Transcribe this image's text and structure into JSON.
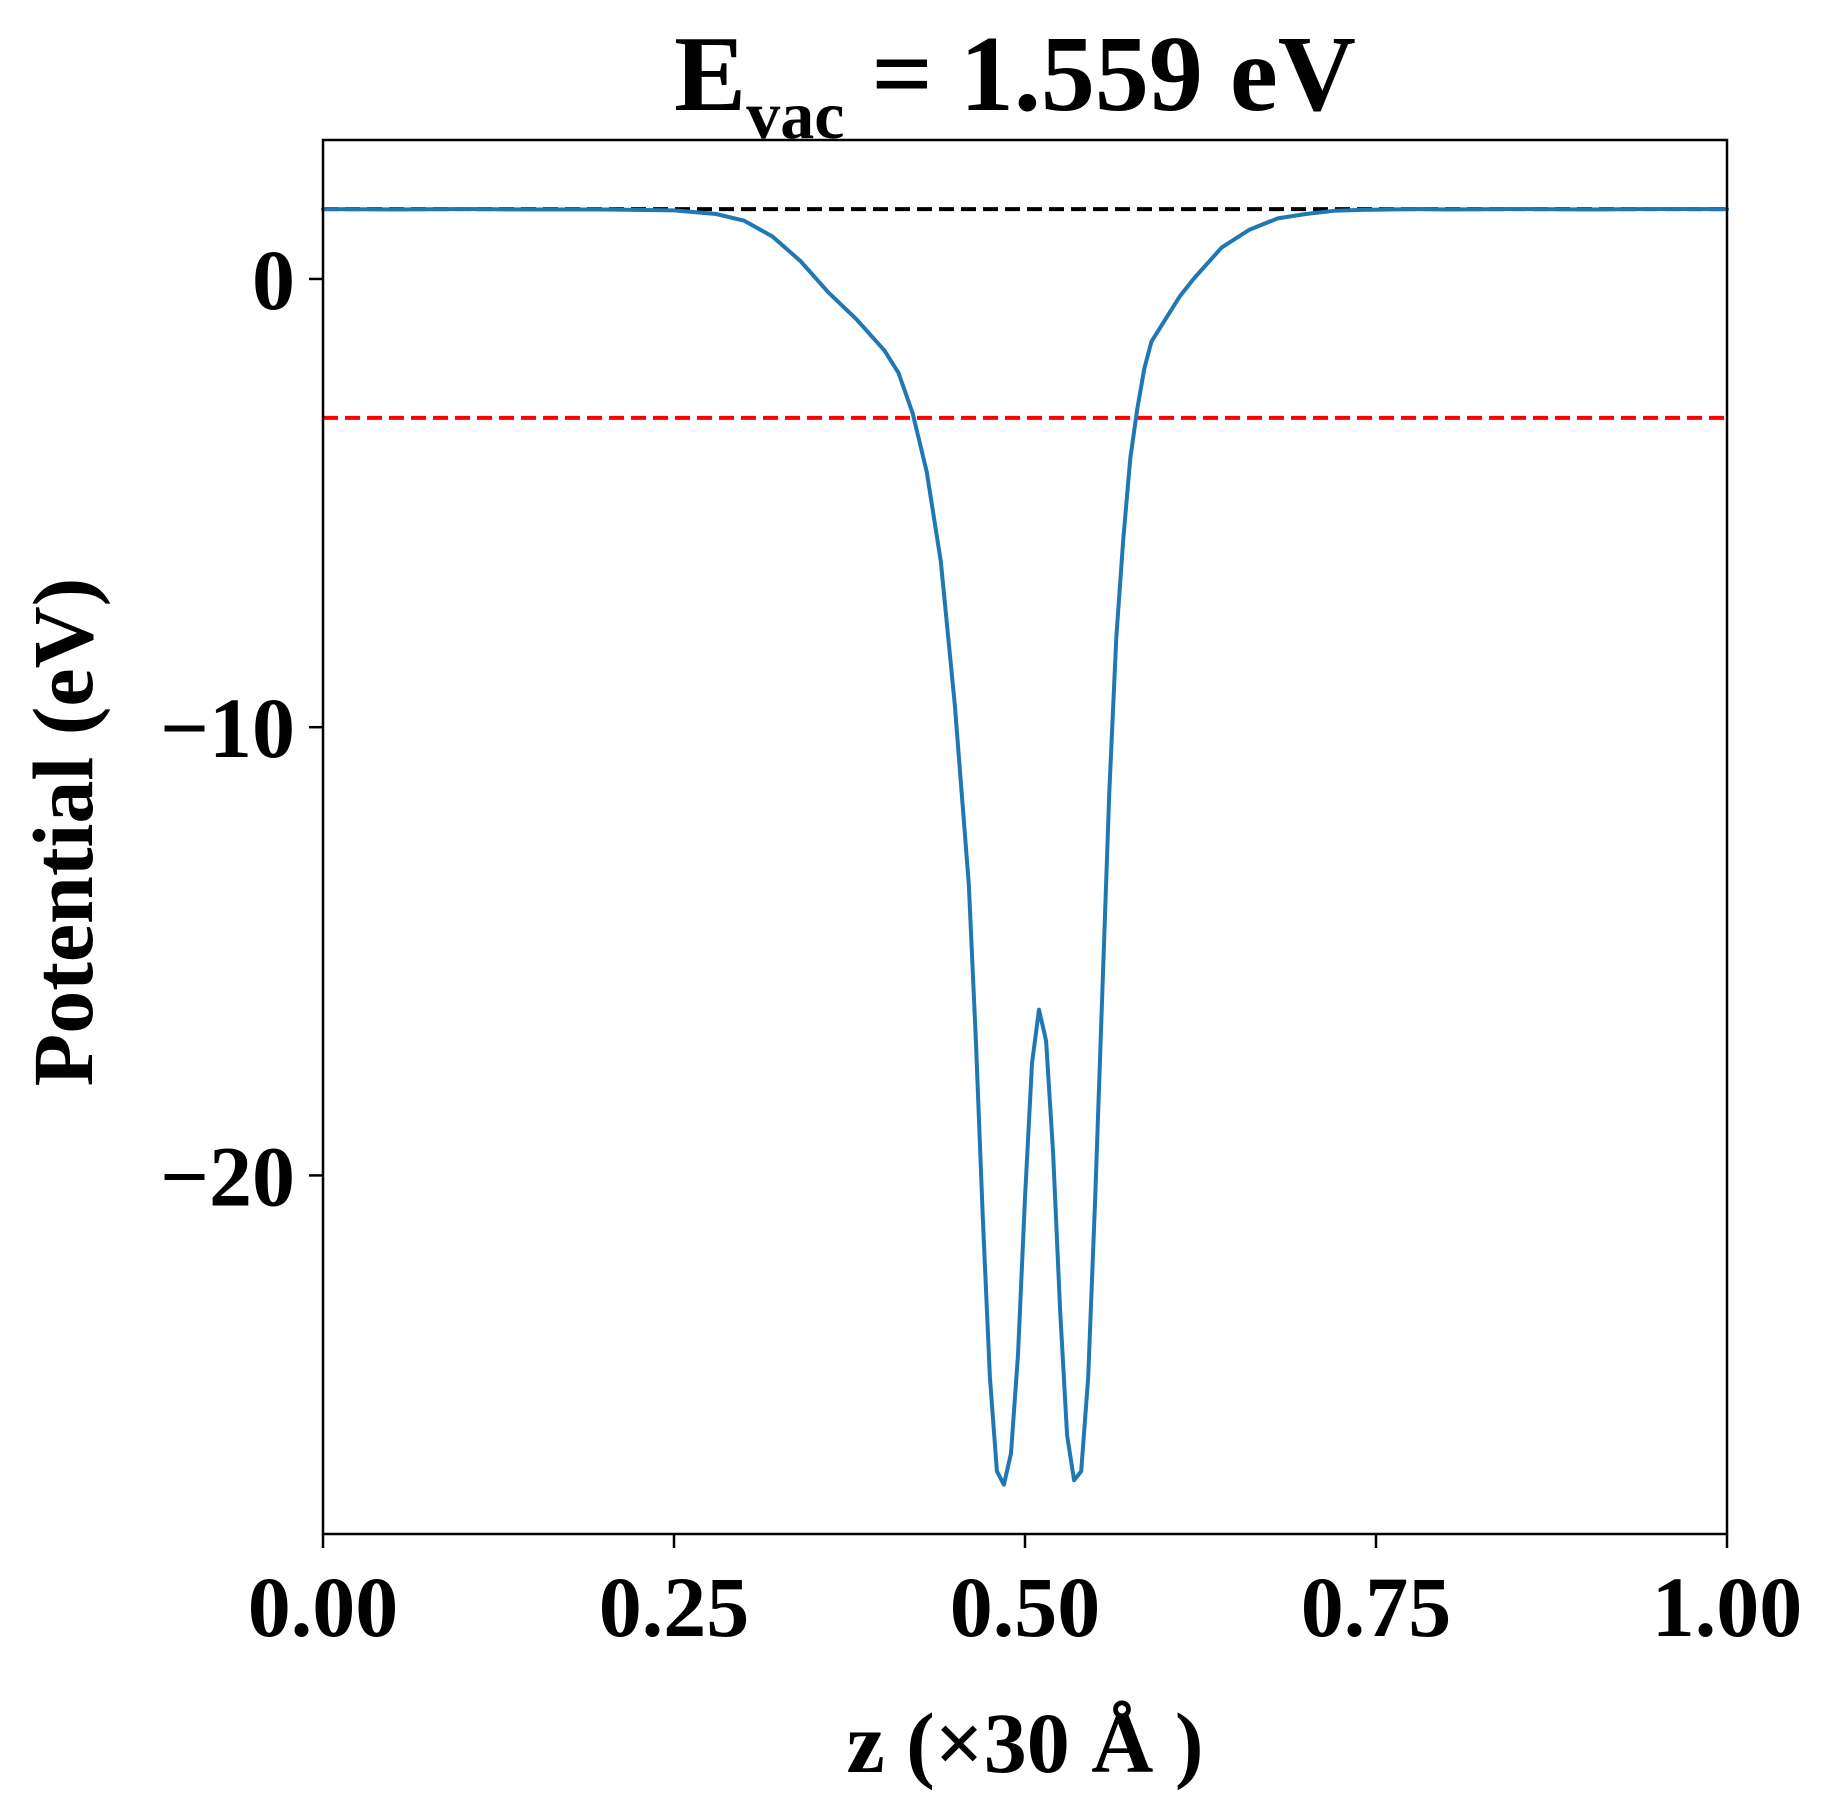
{
  "chart_data": {
    "type": "line",
    "title": {
      "main": "E",
      "subscript": "vac",
      "rest": " = 1.559 eV"
    },
    "xlabel": "z (×30 Å )",
    "ylabel": "Potential (eV)",
    "xlim": [
      0,
      1
    ],
    "ylim": [
      -28.0,
      3.1
    ],
    "grid": false,
    "legend": "none",
    "x_ticks": [
      0.0,
      0.25,
      0.5,
      0.75,
      1.0
    ],
    "x_tick_labels": [
      "0.00",
      "0.25",
      "0.50",
      "0.75",
      "1.00"
    ],
    "y_ticks": [
      0,
      -10,
      -20
    ],
    "y_tick_labels": [
      "0",
      "−10",
      "−20"
    ],
    "reference_lines": [
      {
        "y": 1.559,
        "color": "#000000",
        "style": "dashed"
      },
      {
        "y": -3.1,
        "color": "#ff0000",
        "style": "dashed"
      }
    ],
    "series": [
      {
        "color": "#1f77b4",
        "x": [
          0.0,
          0.05,
          0.1,
          0.15,
          0.2,
          0.25,
          0.28,
          0.3,
          0.32,
          0.34,
          0.36,
          0.38,
          0.4,
          0.41,
          0.42,
          0.43,
          0.44,
          0.45,
          0.46,
          0.465,
          0.47,
          0.475,
          0.48,
          0.485,
          0.49,
          0.495,
          0.5,
          0.505,
          0.51,
          0.515,
          0.52,
          0.525,
          0.53,
          0.535,
          0.54,
          0.545,
          0.55,
          0.555,
          0.56,
          0.565,
          0.57,
          0.575,
          0.58,
          0.585,
          0.59,
          0.6,
          0.61,
          0.62,
          0.63,
          0.64,
          0.66,
          0.68,
          0.7,
          0.72,
          0.74,
          0.76,
          0.78,
          0.8,
          0.85,
          0.9,
          0.95,
          1.0
        ],
        "y": [
          1.559,
          1.55,
          1.56,
          1.55,
          1.55,
          1.53,
          1.45,
          1.3,
          0.95,
          0.4,
          -0.3,
          -0.9,
          -1.6,
          -2.1,
          -3.0,
          -4.3,
          -6.3,
          -9.5,
          -13.5,
          -17.0,
          -21.0,
          -24.5,
          -26.6,
          -26.9,
          -26.2,
          -24.0,
          -20.5,
          -17.5,
          -16.3,
          -17.0,
          -19.5,
          -23.0,
          -25.8,
          -26.8,
          -26.6,
          -24.5,
          -20.5,
          -16.0,
          -11.5,
          -8.0,
          -5.8,
          -4.0,
          -2.9,
          -2.0,
          -1.4,
          -0.9,
          -0.4,
          0.0,
          0.35,
          0.7,
          1.1,
          1.35,
          1.45,
          1.52,
          1.54,
          1.55,
          1.56,
          1.55,
          1.56,
          1.55,
          1.56,
          1.559
        ]
      }
    ]
  }
}
